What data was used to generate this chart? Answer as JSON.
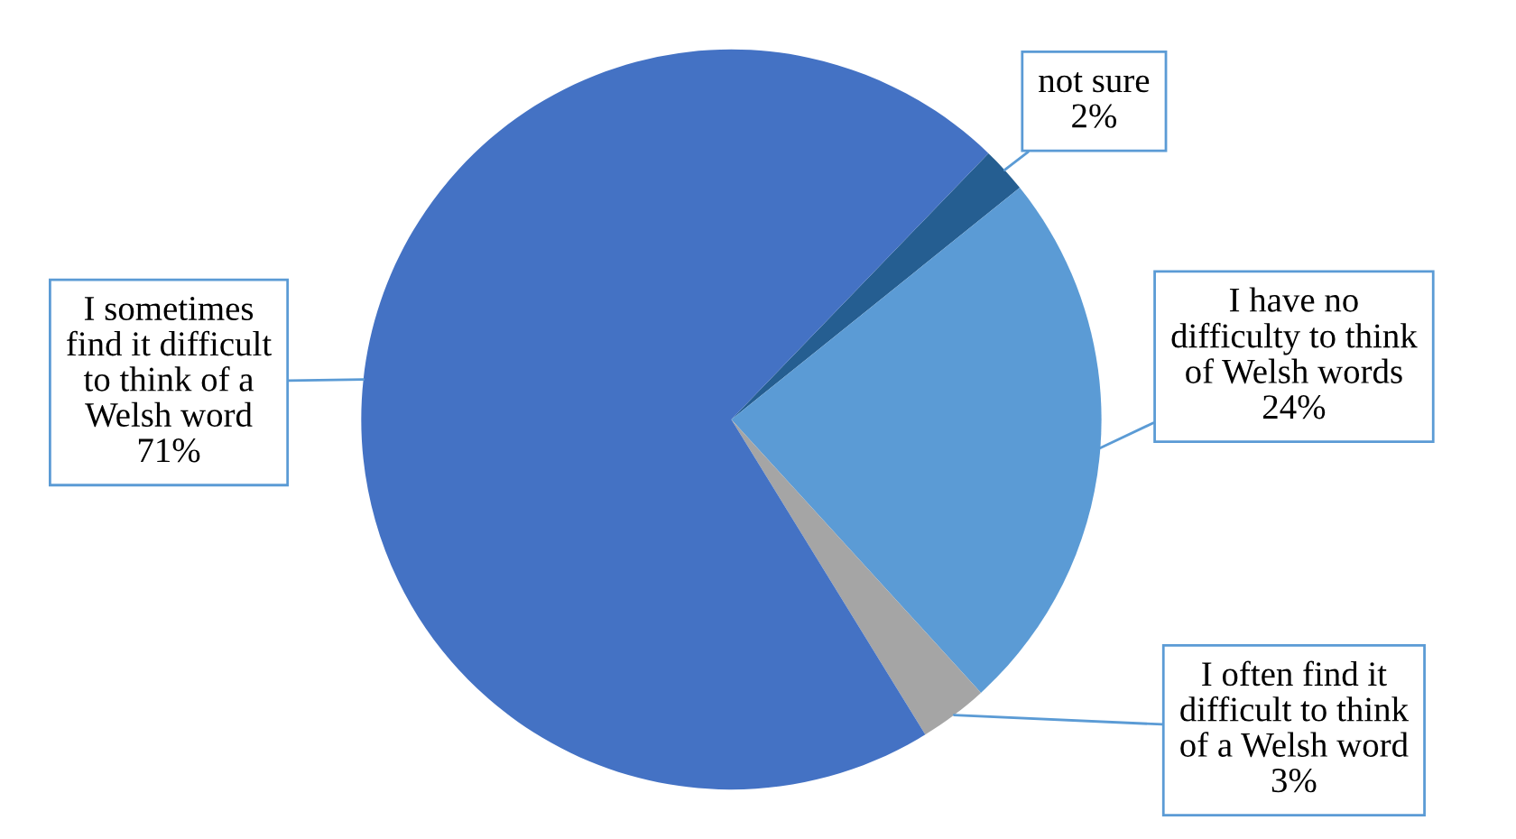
{
  "chart_data": {
    "type": "pie",
    "categories": [
      "not sure",
      "I have no\ndifficulty to think\nof Welsh words",
      "I often find it\ndifficult to think\nof a Welsh word",
      "I sometimes\nfind it difficult\nto think of a\nWelsh word"
    ],
    "values": [
      2,
      24,
      3,
      71
    ],
    "value_labels": [
      "2%",
      "24%",
      "3%",
      "71%"
    ],
    "colors": [
      "#255e91",
      "#5b9bd5",
      "#a5a5a5",
      "#4472c4"
    ]
  }
}
